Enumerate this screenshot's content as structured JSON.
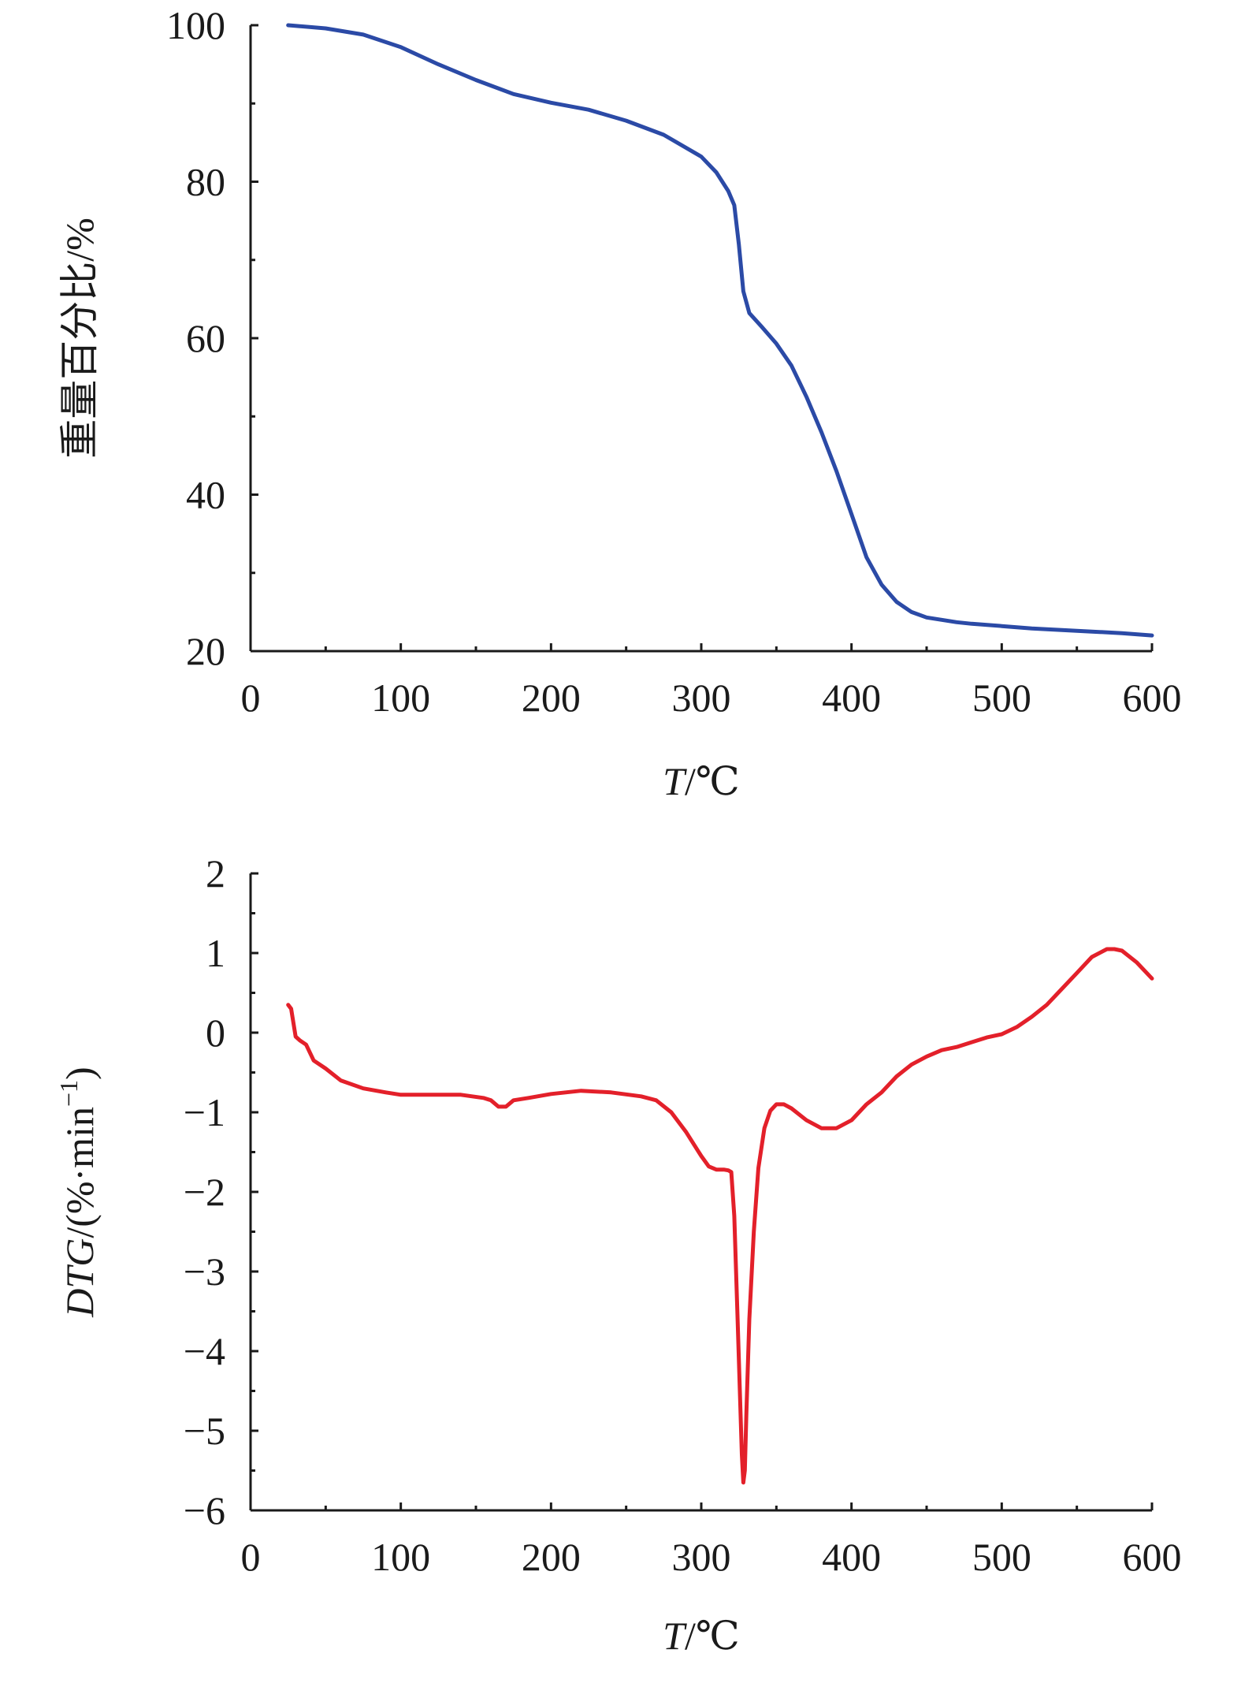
{
  "chart_data": [
    {
      "type": "line",
      "title": "",
      "xlabel": "T/℃",
      "xlabel_italic_part": "T",
      "xlabel_rest": "/℃",
      "ylabel": "重量百分比/%",
      "xlim": [
        0,
        600
      ],
      "ylim": [
        20,
        100
      ],
      "xticks": [
        0,
        100,
        200,
        300,
        400,
        500,
        600
      ],
      "xtick_labels": [
        "0",
        "100",
        "200",
        "300",
        "400",
        "500",
        "600"
      ],
      "yticks": [
        20,
        40,
        60,
        80,
        100
      ],
      "ytick_labels": [
        "20",
        "40",
        "60",
        "80",
        "100"
      ],
      "x_minor_step": 50,
      "y_minor_step": 10,
      "grid": false,
      "series": [
        {
          "color": "#2b4aa6",
          "x": [
            25,
            50,
            75,
            100,
            125,
            150,
            175,
            200,
            225,
            250,
            275,
            300,
            310,
            318,
            322,
            325,
            328,
            332,
            340,
            350,
            360,
            370,
            380,
            390,
            400,
            410,
            420,
            430,
            440,
            450,
            460,
            470,
            480,
            500,
            520,
            540,
            560,
            580,
            600
          ],
          "y": [
            100,
            99.6,
            98.8,
            97.2,
            95,
            93,
            91.2,
            90.1,
            89.2,
            87.8,
            86,
            83.2,
            81.2,
            78.8,
            77,
            72,
            66,
            63.2,
            61.5,
            59.3,
            56.5,
            52.5,
            48,
            43,
            37.5,
            32,
            28.5,
            26.3,
            25,
            24.3,
            24,
            23.7,
            23.5,
            23.2,
            22.9,
            22.7,
            22.5,
            22.3,
            22.0
          ]
        }
      ]
    },
    {
      "type": "line",
      "title": "",
      "xlabel": "T/℃",
      "xlabel_italic_part": "T",
      "xlabel_rest": "/℃",
      "ylabel": "DTG/(%·min−1)",
      "ylabel_italic_part": "DTG",
      "ylabel_rest": "/(%·min",
      "ylabel_sup": "−1",
      "ylabel_close": ")",
      "xlim": [
        0,
        600
      ],
      "ylim": [
        -6,
        2
      ],
      "xticks": [
        0,
        100,
        200,
        300,
        400,
        500,
        600
      ],
      "xtick_labels": [
        "0",
        "100",
        "200",
        "300",
        "400",
        "500",
        "600"
      ],
      "yticks": [
        -6,
        -5,
        -4,
        -3,
        -2,
        -1,
        0,
        1,
        2
      ],
      "ytick_labels": [
        "−6",
        "−5",
        "−4",
        "−3",
        "−2",
        "−1",
        "0",
        "1",
        "2"
      ],
      "x_minor_step": 50,
      "y_minor_step": 0.5,
      "grid": false,
      "series": [
        {
          "color": "#e3202a",
          "x": [
            25,
            27,
            30,
            33,
            37,
            42,
            50,
            60,
            75,
            90,
            100,
            120,
            140,
            155,
            160,
            165,
            170,
            175,
            185,
            200,
            220,
            240,
            260,
            270,
            280,
            290,
            300,
            305,
            310,
            315,
            318,
            320,
            322,
            324,
            326,
            327,
            328,
            329,
            330,
            332,
            335,
            338,
            342,
            346,
            350,
            355,
            360,
            370,
            380,
            390,
            400,
            410,
            420,
            430,
            440,
            450,
            460,
            470,
            480,
            490,
            500,
            510,
            520,
            530,
            540,
            550,
            560,
            570,
            575,
            580,
            590,
            600
          ],
          "y": [
            0.35,
            0.3,
            -0.05,
            -0.1,
            -0.15,
            -0.35,
            -0.45,
            -0.6,
            -0.7,
            -0.75,
            -0.78,
            -0.78,
            -0.78,
            -0.82,
            -0.85,
            -0.93,
            -0.93,
            -0.85,
            -0.82,
            -0.77,
            -0.73,
            -0.75,
            -0.8,
            -0.85,
            -1.0,
            -1.25,
            -1.55,
            -1.68,
            -1.72,
            -1.72,
            -1.73,
            -1.75,
            -2.3,
            -3.5,
            -4.7,
            -5.3,
            -5.65,
            -5.5,
            -4.8,
            -3.6,
            -2.5,
            -1.7,
            -1.2,
            -0.98,
            -0.9,
            -0.9,
            -0.95,
            -1.1,
            -1.2,
            -1.2,
            -1.1,
            -0.9,
            -0.75,
            -0.55,
            -0.4,
            -0.3,
            -0.22,
            -0.18,
            -0.12,
            -0.06,
            -0.02,
            0.07,
            0.2,
            0.35,
            0.55,
            0.75,
            0.95,
            1.05,
            1.05,
            1.03,
            0.88,
            0.68
          ]
        }
      ]
    }
  ]
}
